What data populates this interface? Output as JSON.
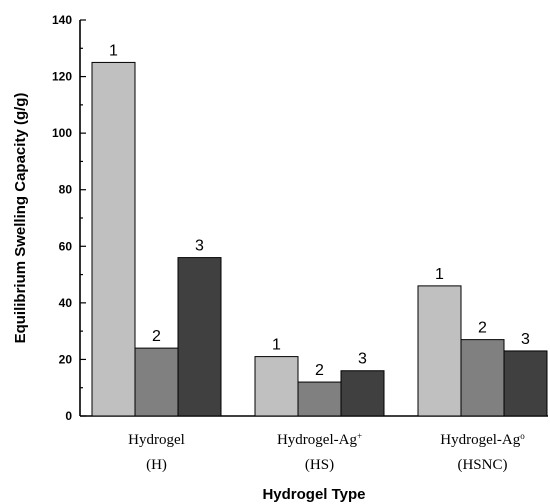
{
  "chart_data": {
    "type": "bar",
    "xlabel": "Hydrogel Type",
    "ylabel": "Equilibrium Swelling Capacity (g/g)",
    "ylim": [
      0,
      140
    ],
    "yticks": [
      0,
      20,
      40,
      60,
      80,
      100,
      120,
      140
    ],
    "categories": [
      {
        "line1": "Hydrogel",
        "sup": "",
        "line2": "(H)"
      },
      {
        "line1": "Hydrogel-Ag",
        "sup": "+",
        "line2": "(HS)"
      },
      {
        "line1": "Hydrogel-Ag",
        "sup": "o",
        "line2": "(HSNC)"
      }
    ],
    "series": [
      {
        "label": "1",
        "color": "#c0c0c0",
        "values": [
          125,
          21,
          46
        ]
      },
      {
        "label": "2",
        "color": "#808080",
        "values": [
          24,
          12,
          27
        ]
      },
      {
        "label": "3",
        "color": "#404040",
        "values": [
          56,
          16,
          23
        ]
      }
    ],
    "grid": false,
    "legend": "none"
  }
}
